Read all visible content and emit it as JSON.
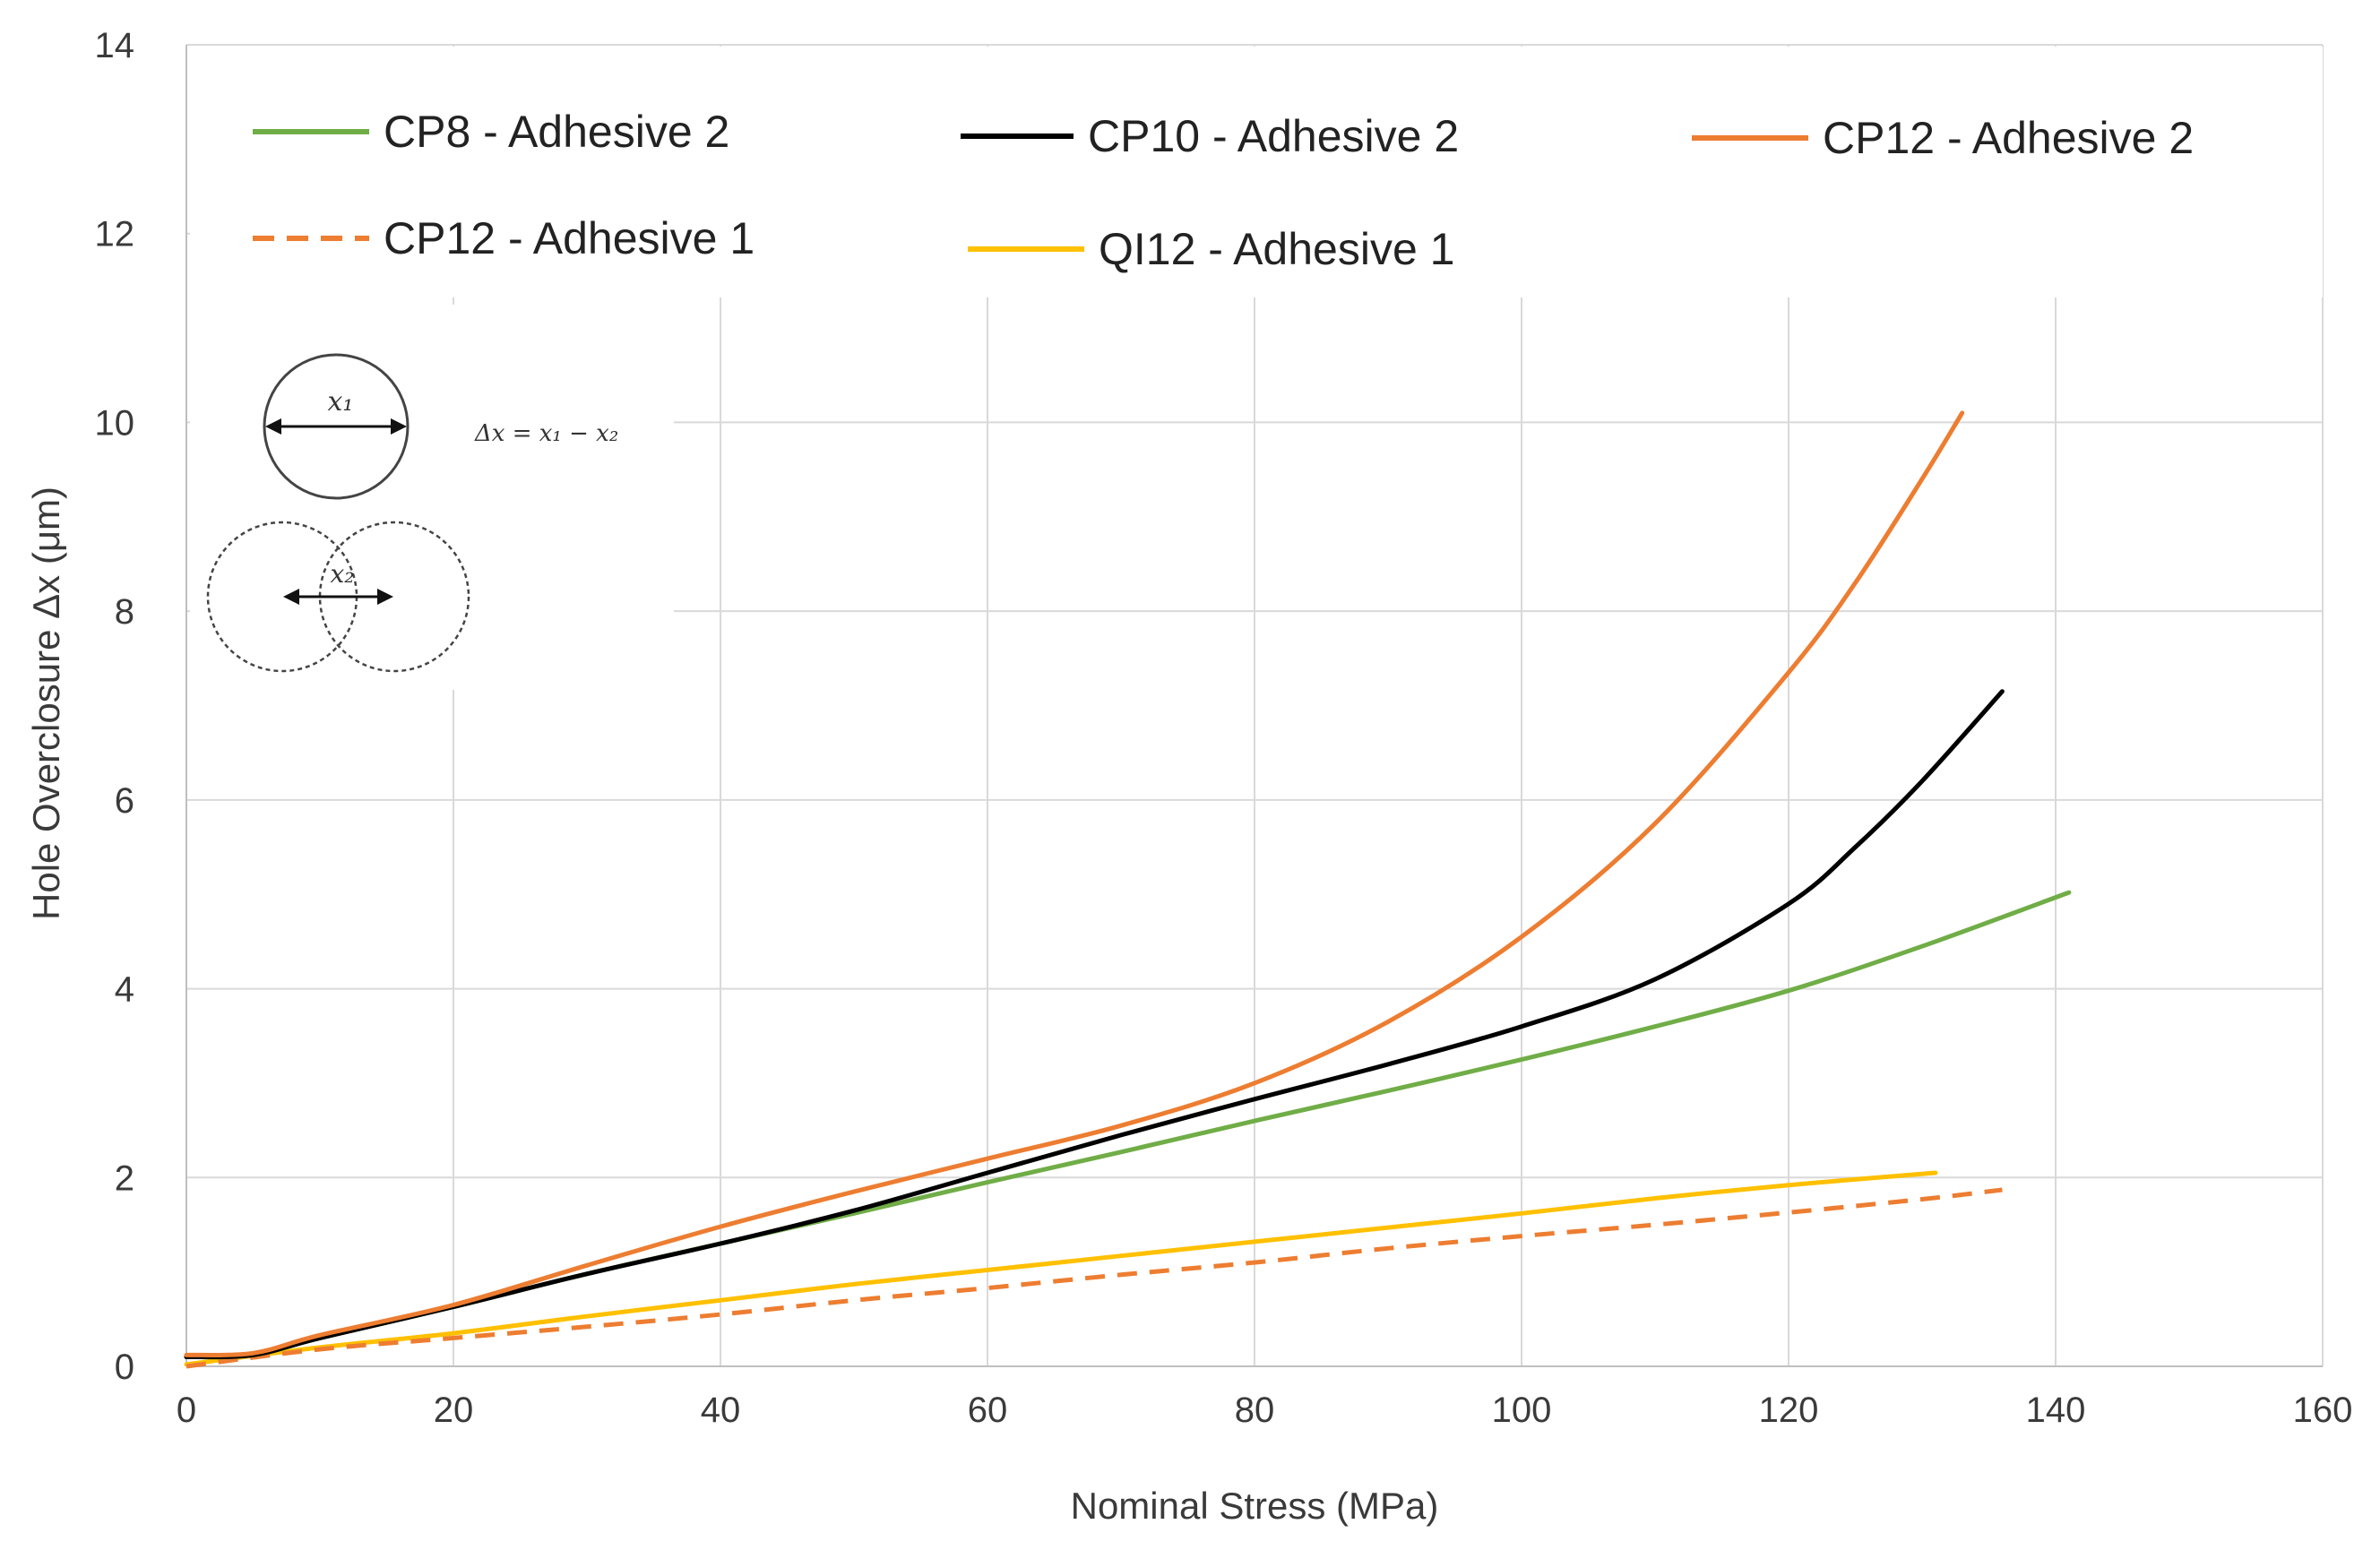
{
  "chart_data": {
    "type": "line",
    "title": "",
    "xlabel": "Nominal Stress (MPa)",
    "ylabel": "Hole Overclosure Δx (μm)",
    "xlim": [
      0,
      160
    ],
    "ylim": [
      0,
      14
    ],
    "xticks": [
      0,
      20,
      40,
      60,
      80,
      100,
      120,
      140,
      160
    ],
    "yticks": [
      0,
      2,
      4,
      6,
      8,
      10,
      12,
      14
    ],
    "grid": true,
    "legend_position": "top",
    "series": [
      {
        "name": "CP8 - Adhesive 2",
        "color": "#70ad47",
        "dash": "solid",
        "x": [
          0,
          5,
          10,
          20,
          30,
          40,
          50,
          60,
          70,
          80,
          90,
          100,
          110,
          120,
          130,
          141
        ],
        "y": [
          0.1,
          0.12,
          0.3,
          0.63,
          0.98,
          1.3,
          1.62,
          1.95,
          2.27,
          2.6,
          2.92,
          3.25,
          3.6,
          3.98,
          4.45,
          5.02
        ]
      },
      {
        "name": "CP10 - Adhesive 2",
        "color": "#000000",
        "dash": "solid",
        "x": [
          0,
          5,
          10,
          20,
          30,
          40,
          50,
          60,
          70,
          80,
          90,
          100,
          110,
          120,
          125,
          130,
          136
        ],
        "y": [
          0.1,
          0.12,
          0.3,
          0.63,
          0.98,
          1.3,
          1.65,
          2.05,
          2.45,
          2.83,
          3.2,
          3.6,
          4.1,
          4.9,
          5.5,
          6.2,
          7.15
        ]
      },
      {
        "name": "CP12 - Adhesive 2",
        "color": "#ed7d31",
        "dash": "solid",
        "x": [
          0,
          5,
          10,
          20,
          30,
          40,
          50,
          60,
          70,
          80,
          90,
          100,
          110,
          120,
          125,
          130,
          133
        ],
        "y": [
          0.12,
          0.14,
          0.33,
          0.65,
          1.07,
          1.48,
          1.85,
          2.2,
          2.55,
          3.0,
          3.65,
          4.55,
          5.75,
          7.35,
          8.3,
          9.4,
          10.1
        ]
      },
      {
        "name": "CP12 - Adhesive 1",
        "color": "#ed7d31",
        "dash": "dashed",
        "x": [
          0,
          10,
          20,
          30,
          40,
          50,
          60,
          70,
          80,
          90,
          100,
          110,
          120,
          130,
          136
        ],
        "y": [
          0.0,
          0.18,
          0.3,
          0.42,
          0.55,
          0.7,
          0.83,
          0.97,
          1.1,
          1.25,
          1.38,
          1.5,
          1.63,
          1.77,
          1.87
        ]
      },
      {
        "name": "QI12 - Adhesive 1",
        "color": "#ffc000",
        "dash": "solid",
        "x": [
          0,
          10,
          20,
          30,
          40,
          50,
          60,
          70,
          80,
          90,
          100,
          110,
          120,
          131
        ],
        "y": [
          0.02,
          0.2,
          0.35,
          0.53,
          0.7,
          0.87,
          1.02,
          1.17,
          1.32,
          1.47,
          1.62,
          1.78,
          1.92,
          2.05
        ]
      }
    ],
    "annotations": {
      "diagram_x1_label": "x₁",
      "diagram_x2_label": "x₂",
      "formula": "Δx = x₁ − x₂"
    }
  }
}
